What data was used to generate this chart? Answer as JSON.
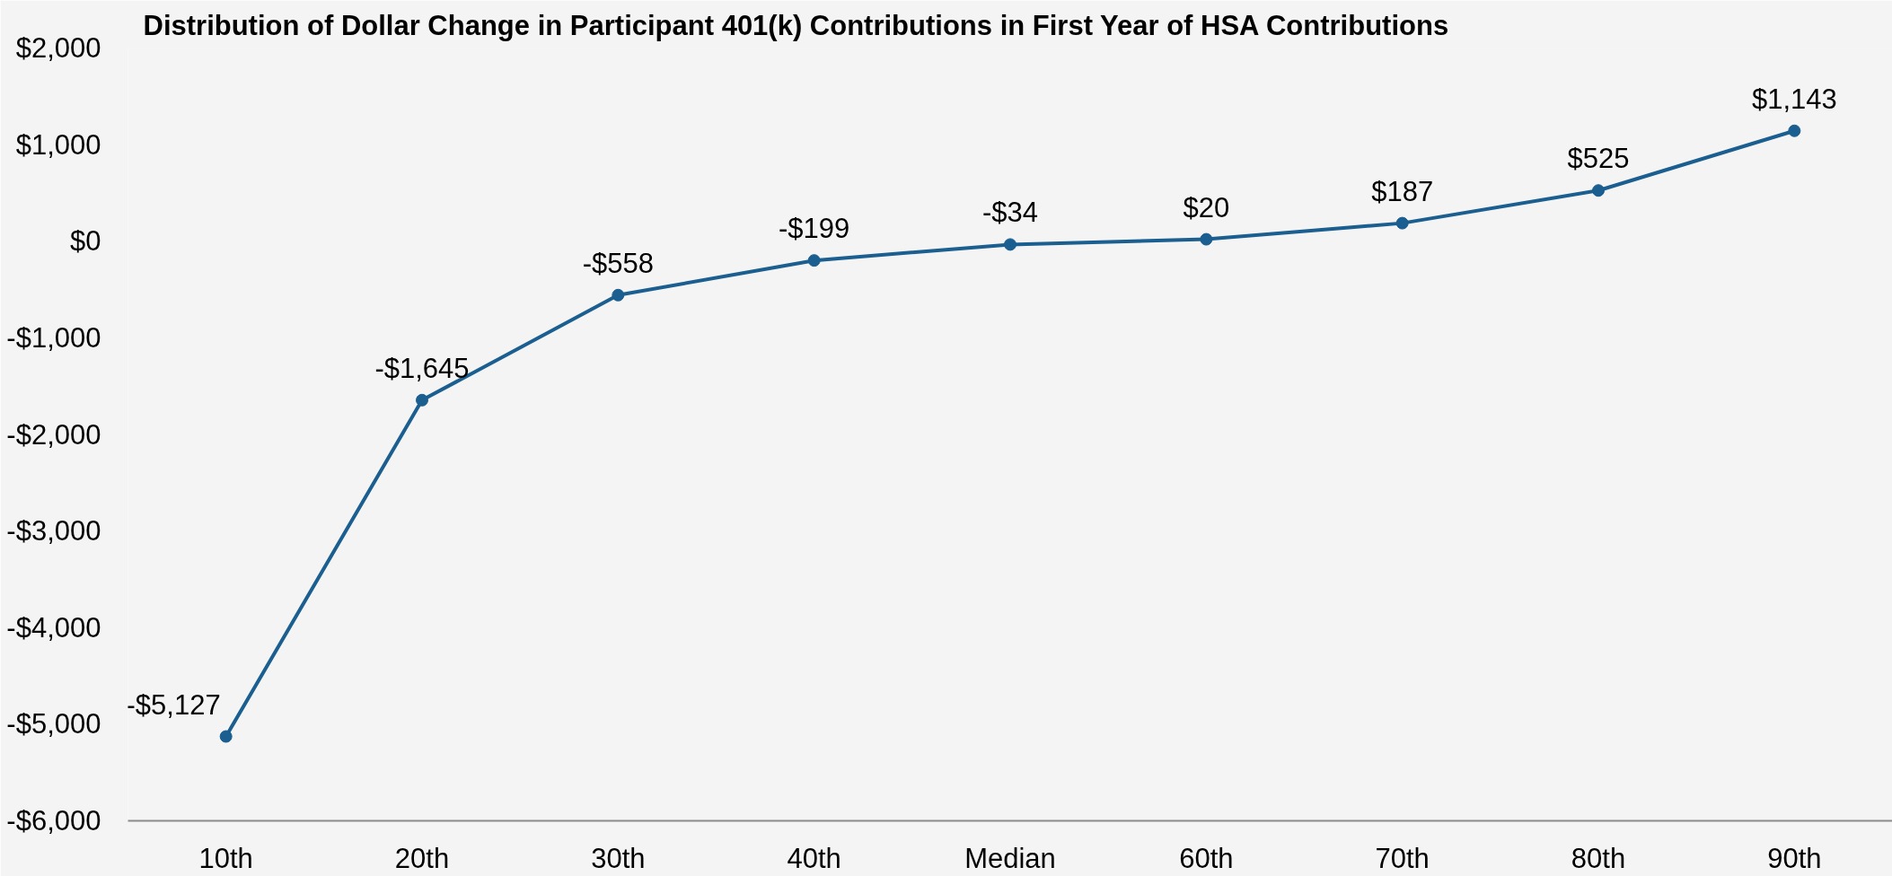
{
  "chart_data": {
    "type": "line",
    "title": "Distribution of Dollar Change in Participant 401(k) Contributions in First Year of HSA Contributions",
    "categories": [
      "10th",
      "20th",
      "30th",
      "40th",
      "Median",
      "60th",
      "70th",
      "80th",
      "90th"
    ],
    "series": [
      {
        "color": "#1b5e90",
        "values": [
          -5127,
          -1645,
          -558,
          -199,
          -34,
          20,
          187,
          525,
          1143
        ],
        "value_labels": [
          "-$5,127",
          "-$1,645",
          "-$558",
          "-$199",
          "-$34",
          "$20",
          "$187",
          "$525",
          "$1,143"
        ]
      }
    ],
    "ylim": [
      -6000,
      2000
    ],
    "yticks": [
      {
        "value": -6000,
        "label": "-$6,000"
      },
      {
        "value": -5000,
        "label": "-$5,000"
      },
      {
        "value": -4000,
        "label": "-$4,000"
      },
      {
        "value": -3000,
        "label": "-$3,000"
      },
      {
        "value": -2000,
        "label": "-$2,000"
      },
      {
        "value": -1000,
        "label": "-$1,000"
      },
      {
        "value": 0,
        "label": "$0"
      },
      {
        "value": 1000,
        "label": "$1,000"
      },
      {
        "value": 2000,
        "label": "$2,000"
      }
    ],
    "grid": false,
    "marker": "circle",
    "line_style": "solid"
  }
}
